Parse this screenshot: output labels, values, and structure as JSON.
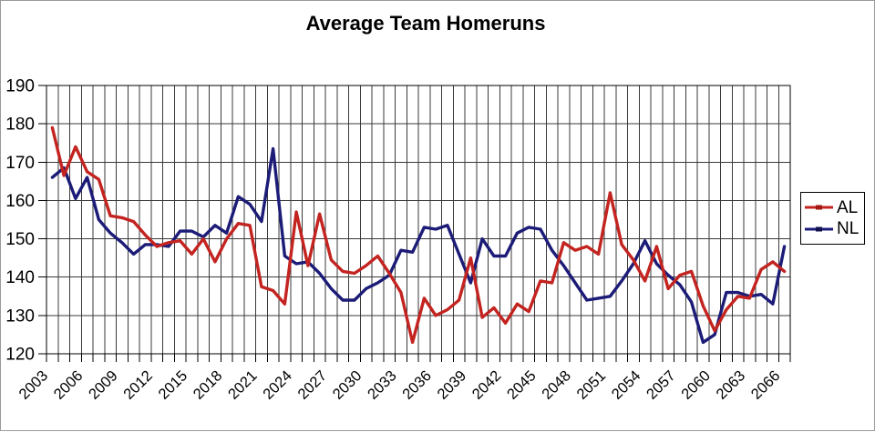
{
  "chart_data": {
    "type": "line",
    "title": "Average Team Homeruns",
    "xlabel": "",
    "ylabel": "",
    "ylim": [
      120,
      190
    ],
    "y_ticks": [
      120,
      130,
      140,
      150,
      160,
      170,
      180,
      190
    ],
    "x_ticks": [
      2003,
      2006,
      2009,
      2012,
      2015,
      2018,
      2021,
      2024,
      2027,
      2030,
      2033,
      2036,
      2039,
      2042,
      2045,
      2048,
      2051,
      2054,
      2057,
      2060,
      2063,
      2066
    ],
    "grid": "both",
    "legend_position": "right",
    "categories": [
      2003,
      2004,
      2005,
      2006,
      2007,
      2008,
      2009,
      2010,
      2011,
      2012,
      2013,
      2014,
      2015,
      2016,
      2017,
      2018,
      2019,
      2020,
      2021,
      2022,
      2023,
      2024,
      2025,
      2026,
      2027,
      2028,
      2029,
      2030,
      2031,
      2032,
      2033,
      2034,
      2035,
      2036,
      2037,
      2038,
      2039,
      2040,
      2041,
      2042,
      2043,
      2044,
      2045,
      2046,
      2047,
      2048,
      2049,
      2050,
      2051,
      2052,
      2053,
      2054,
      2055,
      2056,
      2057,
      2058,
      2059,
      2060,
      2061,
      2062,
      2063,
      2064,
      2065,
      2066
    ],
    "series": [
      {
        "name": "AL",
        "color": "#c32420",
        "values": [
          179,
          166.5,
          174,
          167.5,
          165.5,
          156,
          155.5,
          154.5,
          151,
          148,
          149,
          149.5,
          146,
          150,
          144,
          150,
          154,
          153.5,
          137.5,
          136.5,
          133,
          157,
          143,
          156.5,
          144.5,
          141.5,
          141,
          143,
          145.5,
          141,
          136,
          123,
          134.5,
          130,
          131.5,
          134,
          145,
          129.5,
          132,
          128,
          133,
          131,
          139,
          138.5,
          149,
          147,
          148,
          146,
          162,
          148.5,
          144.5,
          139,
          148,
          137,
          140.5,
          141.5,
          132.5,
          126,
          131.5,
          135,
          134.5,
          142,
          144,
          141.5
        ]
      },
      {
        "name": "NL",
        "color": "#1c1c78",
        "values": [
          166,
          168.5,
          160.5,
          166,
          155,
          151.5,
          149,
          146,
          148.5,
          148.5,
          148,
          152,
          152,
          150.5,
          153.5,
          151.5,
          161,
          159,
          154.5,
          173.5,
          145.5,
          143.5,
          144,
          141,
          137,
          134,
          134,
          137,
          138.5,
          140.5,
          147,
          146.5,
          153,
          152.5,
          153.5,
          146,
          138.5,
          150,
          145.5,
          145.5,
          151.5,
          153,
          152.5,
          147,
          143,
          138.5,
          134,
          134.5,
          135,
          139,
          143.5,
          149.5,
          143.5,
          140.5,
          138,
          133.5,
          123,
          125,
          136,
          136,
          135,
          135.5,
          133,
          148
        ]
      }
    ]
  }
}
